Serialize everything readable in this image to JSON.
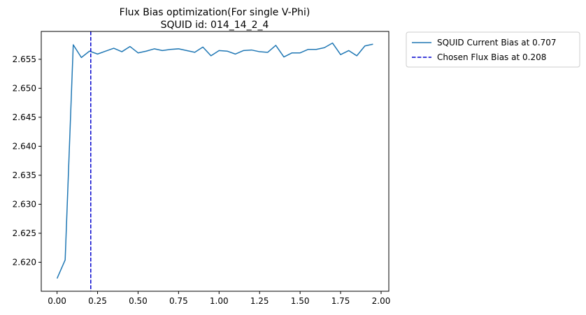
{
  "chart_data": {
    "type": "line",
    "title_line1": "Flux Bias optimization(For single V-Phi)",
    "title_line2": "SQUID id: 014_14_2_4",
    "xlabel": "",
    "ylabel": "",
    "xlim": [
      -0.0975,
      2.0475
    ],
    "ylim": [
      2.615,
      2.6598
    ],
    "x_ticks": [
      0.0,
      0.25,
      0.5,
      0.75,
      1.0,
      1.25,
      1.5,
      1.75,
      2.0
    ],
    "x_tick_labels": [
      "0.00",
      "0.25",
      "0.50",
      "0.75",
      "1.00",
      "1.25",
      "1.50",
      "1.75",
      "2.00"
    ],
    "y_ticks": [
      2.62,
      2.625,
      2.63,
      2.635,
      2.64,
      2.645,
      2.65,
      2.655
    ],
    "y_tick_labels": [
      "2.620",
      "2.625",
      "2.630",
      "2.635",
      "2.640",
      "2.645",
      "2.650",
      "2.655"
    ],
    "grid": false,
    "legend_position": "outside-top-right",
    "series": [
      {
        "name": "SQUID Current Bias at 0.707",
        "color": "#1f77b4",
        "style": "solid",
        "x": [
          0.0,
          0.05,
          0.1,
          0.15,
          0.2,
          0.25,
          0.3,
          0.35,
          0.4,
          0.45,
          0.5,
          0.55,
          0.6,
          0.65,
          0.7,
          0.75,
          0.8,
          0.85,
          0.9,
          0.95,
          1.0,
          1.05,
          1.1,
          1.15,
          1.2,
          1.25,
          1.3,
          1.35,
          1.4,
          1.45,
          1.5,
          1.55,
          1.6,
          1.65,
          1.7,
          1.75,
          1.8,
          1.85,
          1.9,
          1.95
        ],
        "y": [
          2.6172,
          2.6204,
          2.6575,
          2.6553,
          2.6564,
          2.6559,
          2.6564,
          2.6569,
          2.6563,
          2.6572,
          2.6561,
          2.6564,
          2.6568,
          2.6565,
          2.6567,
          2.6568,
          2.6565,
          2.6562,
          2.6571,
          2.6556,
          2.6565,
          2.6564,
          2.6559,
          2.6565,
          2.6566,
          2.6563,
          2.6562,
          2.6574,
          2.6554,
          2.6561,
          2.6561,
          2.6567,
          2.6567,
          2.657,
          2.6578,
          2.6558,
          2.6565,
          2.6556,
          2.6573,
          2.6576
        ]
      }
    ],
    "vlines": [
      {
        "name": "Chosen Flux Bias at 0.208",
        "x": 0.208,
        "color": "#0000cd",
        "style": "dashed"
      }
    ]
  }
}
